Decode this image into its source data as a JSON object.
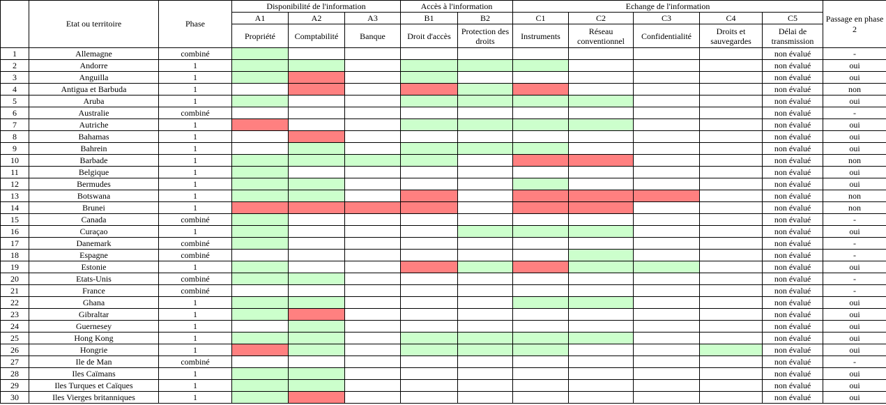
{
  "header": {
    "num_col": "",
    "state_col": "Etat ou territoire",
    "phase_col": "Phase",
    "group_a": "Disponibilité de l'information",
    "group_b": "Accès à l'information",
    "group_c": "Echange de l'information",
    "passage_col": "Passage en phase 2",
    "codes": [
      "A1",
      "A2",
      "A3",
      "B1",
      "B2",
      "C1",
      "C2",
      "C3",
      "C4",
      "C5"
    ],
    "labels": [
      "Propriété",
      "Comptabilité",
      "Banque",
      "Droit d'accès",
      "Protection des droits",
      "Instruments",
      "Réseau conventionnel",
      "Confidentialité",
      "Droits et sauvegardes",
      "Délai de transmission"
    ]
  },
  "legend_colors": {
    "g": "#ccffcc",
    "r": "#ff8080",
    "w": "#ffffff"
  },
  "rows": [
    {
      "num": "1",
      "name": "Allemagne",
      "phase": "combiné",
      "cells": [
        "g",
        "w",
        "w",
        "w",
        "w",
        "w",
        "w",
        "w",
        "w"
      ],
      "c5": "non évalué",
      "passage": "-"
    },
    {
      "num": "2",
      "name": "Andorre",
      "phase": "1",
      "cells": [
        "g",
        "g",
        "w",
        "g",
        "g",
        "g",
        "w",
        "w",
        "w"
      ],
      "c5": "non évalué",
      "passage": "oui"
    },
    {
      "num": "3",
      "name": "Anguilla",
      "phase": "1",
      "cells": [
        "g",
        "r",
        "w",
        "g",
        "w",
        "w",
        "w",
        "w",
        "w"
      ],
      "c5": "non évalué",
      "passage": "oui"
    },
    {
      "num": "4",
      "name": "Antigua et Barbuda",
      "phase": "1",
      "cells": [
        "w",
        "r",
        "w",
        "r",
        "g",
        "r",
        "w",
        "w",
        "w"
      ],
      "c5": "non évalué",
      "passage": "non"
    },
    {
      "num": "5",
      "name": "Aruba",
      "phase": "1",
      "cells": [
        "g",
        "w",
        "w",
        "g",
        "g",
        "g",
        "g",
        "w",
        "w"
      ],
      "c5": "non évalué",
      "passage": "oui"
    },
    {
      "num": "6",
      "name": "Australie",
      "phase": "combiné",
      "cells": [
        "w",
        "w",
        "w",
        "w",
        "w",
        "w",
        "w",
        "w",
        "w"
      ],
      "c5": "non évalué",
      "passage": "-"
    },
    {
      "num": "7",
      "name": "Autriche",
      "phase": "1",
      "cells": [
        "r",
        "w",
        "w",
        "g",
        "g",
        "g",
        "g",
        "w",
        "w"
      ],
      "c5": "non évalué",
      "passage": "oui"
    },
    {
      "num": "8",
      "name": "Bahamas",
      "phase": "1",
      "cells": [
        "w",
        "r",
        "w",
        "w",
        "w",
        "w",
        "w",
        "w",
        "w"
      ],
      "c5": "non évalué",
      "passage": "oui"
    },
    {
      "num": "9",
      "name": "Bahrein",
      "phase": "1",
      "cells": [
        "w",
        "g",
        "w",
        "g",
        "g",
        "g",
        "w",
        "w",
        "w"
      ],
      "c5": "non évalué",
      "passage": "oui"
    },
    {
      "num": "10",
      "name": "Barbade",
      "phase": "1",
      "cells": [
        "g",
        "g",
        "g",
        "g",
        "w",
        "r",
        "r",
        "w",
        "w"
      ],
      "c5": "non évalué",
      "passage": "non"
    },
    {
      "num": "11",
      "name": "Belgique",
      "phase": "1",
      "cells": [
        "g",
        "w",
        "w",
        "w",
        "w",
        "w",
        "w",
        "w",
        "w"
      ],
      "c5": "non évalué",
      "passage": "oui"
    },
    {
      "num": "12",
      "name": "Bermudes",
      "phase": "1",
      "cells": [
        "g",
        "g",
        "w",
        "w",
        "w",
        "g",
        "w",
        "w",
        "w"
      ],
      "c5": "non évalué",
      "passage": "oui"
    },
    {
      "num": "13",
      "name": "Botswana",
      "phase": "1",
      "cells": [
        "g",
        "g",
        "w",
        "r",
        "w",
        "r",
        "r",
        "r",
        "w"
      ],
      "c5": "non évalué",
      "passage": "non"
    },
    {
      "num": "14",
      "name": "Brunei",
      "phase": "1",
      "cells": [
        "r",
        "r",
        "r",
        "r",
        "w",
        "r",
        "r",
        "w",
        "w"
      ],
      "c5": "non évalué",
      "passage": "non"
    },
    {
      "num": "15",
      "name": "Canada",
      "phase": "combiné",
      "cells": [
        "g",
        "w",
        "w",
        "w",
        "w",
        "w",
        "w",
        "w",
        "w"
      ],
      "c5": "non évalué",
      "passage": "-"
    },
    {
      "num": "16",
      "name": "Curaçao",
      "phase": "1",
      "cells": [
        "g",
        "w",
        "w",
        "w",
        "g",
        "g",
        "g",
        "w",
        "w"
      ],
      "c5": "non évalué",
      "passage": "oui"
    },
    {
      "num": "17",
      "name": "Danemark",
      "phase": "combiné",
      "cells": [
        "g",
        "w",
        "w",
        "w",
        "w",
        "w",
        "w",
        "w",
        "w"
      ],
      "c5": "non évalué",
      "passage": "-"
    },
    {
      "num": "18",
      "name": "Espagne",
      "phase": "combiné",
      "cells": [
        "w",
        "w",
        "w",
        "w",
        "w",
        "w",
        "g",
        "w",
        "w"
      ],
      "c5": "non évalué",
      "passage": "-"
    },
    {
      "num": "19",
      "name": "Estonie",
      "phase": "1",
      "cells": [
        "g",
        "w",
        "w",
        "r",
        "g",
        "r",
        "g",
        "g",
        "w"
      ],
      "c5": "non évalué",
      "passage": "oui"
    },
    {
      "num": "20",
      "name": "Etats-Unis",
      "phase": "combiné",
      "cells": [
        "g",
        "g",
        "w",
        "w",
        "w",
        "w",
        "w",
        "w",
        "w"
      ],
      "c5": "non évalué",
      "passage": "-"
    },
    {
      "num": "21",
      "name": "France",
      "phase": "combiné",
      "cells": [
        "w",
        "w",
        "w",
        "w",
        "w",
        "w",
        "w",
        "w",
        "w"
      ],
      "c5": "non évalué",
      "passage": "-"
    },
    {
      "num": "22",
      "name": "Ghana",
      "phase": "1",
      "cells": [
        "g",
        "g",
        "w",
        "w",
        "w",
        "g",
        "g",
        "w",
        "w"
      ],
      "c5": "non évalué",
      "passage": "oui"
    },
    {
      "num": "23",
      "name": "Gibraltar",
      "phase": "1",
      "cells": [
        "g",
        "r",
        "w",
        "w",
        "w",
        "w",
        "w",
        "w",
        "w"
      ],
      "c5": "non évalué",
      "passage": "oui"
    },
    {
      "num": "24",
      "name": "Guernesey",
      "phase": "1",
      "cells": [
        "w",
        "g",
        "w",
        "w",
        "w",
        "w",
        "w",
        "w",
        "w"
      ],
      "c5": "non évalué",
      "passage": "oui"
    },
    {
      "num": "25",
      "name": "Hong Kong",
      "phase": "1",
      "cells": [
        "g",
        "g",
        "w",
        "g",
        "g",
        "g",
        "g",
        "w",
        "w"
      ],
      "c5": "non évalué",
      "passage": "oui"
    },
    {
      "num": "26",
      "name": "Hongrie",
      "phase": "1",
      "cells": [
        "r",
        "g",
        "w",
        "g",
        "g",
        "g",
        "w",
        "w",
        "g"
      ],
      "c5": "non évalué",
      "passage": "oui"
    },
    {
      "num": "27",
      "name": "Ile de Man",
      "phase": "combiné",
      "cells": [
        "w",
        "w",
        "w",
        "w",
        "w",
        "w",
        "w",
        "w",
        "w"
      ],
      "c5": "non évalué",
      "passage": "-"
    },
    {
      "num": "28",
      "name": "Iles Caïmans",
      "phase": "1",
      "cells": [
        "g",
        "g",
        "w",
        "w",
        "w",
        "w",
        "w",
        "w",
        "w"
      ],
      "c5": "non évalué",
      "passage": "oui"
    },
    {
      "num": "29",
      "name": "Iles Turques et Caïques",
      "phase": "1",
      "cells": [
        "g",
        "g",
        "w",
        "w",
        "w",
        "w",
        "w",
        "w",
        "w"
      ],
      "c5": "non évalué",
      "passage": "oui"
    },
    {
      "num": "30",
      "name": "Iles Vierges britanniques",
      "phase": "1",
      "cells": [
        "g",
        "r",
        "w",
        "w",
        "w",
        "w",
        "w",
        "w",
        "w"
      ],
      "c5": "non évalué",
      "passage": "oui"
    }
  ]
}
